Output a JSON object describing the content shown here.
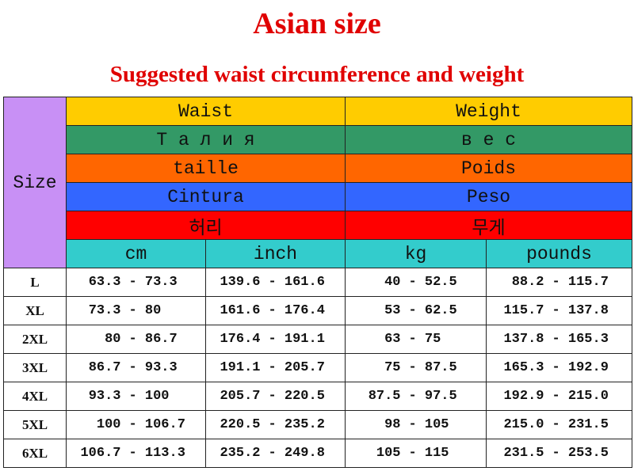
{
  "title": "Asian size",
  "subtitle": "Suggested waist circumference and weight",
  "size_label": "Size",
  "header_rows": [
    {
      "waist": "Waist",
      "weight": "Weight",
      "color": "#ffcc00"
    },
    {
      "waist": "Т а л и я",
      "weight": "в е с",
      "color": "#339966"
    },
    {
      "waist": "taille",
      "weight": "Poids",
      "color": "#ff6600"
    },
    {
      "waist": "Cintura",
      "weight": "Peso",
      "color": "#3366ff"
    },
    {
      "waist": "허리",
      "weight": "무게",
      "color": "#ff0000"
    }
  ],
  "units": {
    "cm": "cm",
    "inch": "inch",
    "kg": "kg",
    "pounds": "pounds",
    "color": "#33cccc"
  },
  "rows": [
    {
      "size": "L",
      "cm": [
        "63.3",
        "- 73.3"
      ],
      "inch": [
        "139.6",
        "- 161.6"
      ],
      "kg": [
        "40",
        "- 52.5"
      ],
      "pounds": [
        "88.2",
        "- 115.7"
      ]
    },
    {
      "size": "XL",
      "cm": [
        "73.3",
        "- 80"
      ],
      "inch": [
        "161.6",
        "- 176.4"
      ],
      "kg": [
        "53",
        "- 62.5"
      ],
      "pounds": [
        "115.7",
        "- 137.8"
      ]
    },
    {
      "size": "2XL",
      "cm": [
        "80",
        "- 86.7"
      ],
      "inch": [
        "176.4",
        "- 191.1"
      ],
      "kg": [
        "63",
        "- 75"
      ],
      "pounds": [
        "137.8",
        "- 165.3"
      ]
    },
    {
      "size": "3XL",
      "cm": [
        "86.7",
        "- 93.3"
      ],
      "inch": [
        "191.1",
        "- 205.7"
      ],
      "kg": [
        "75",
        "- 87.5"
      ],
      "pounds": [
        "165.3",
        "- 192.9"
      ]
    },
    {
      "size": "4XL",
      "cm": [
        "93.3",
        "- 100"
      ],
      "inch": [
        "205.7",
        "- 220.5"
      ],
      "kg": [
        "87.5",
        "- 97.5"
      ],
      "pounds": [
        "192.9",
        "- 215.0"
      ]
    },
    {
      "size": "5XL",
      "cm": [
        "100",
        "- 106.7"
      ],
      "inch": [
        "220.5",
        "- 235.2"
      ],
      "kg": [
        "98",
        "- 105"
      ],
      "pounds": [
        "215.0",
        "- 231.5"
      ]
    },
    {
      "size": "6XL",
      "cm": [
        "106.7",
        "- 113.3"
      ],
      "inch": [
        "235.2",
        "- 249.8"
      ],
      "kg": [
        "105",
        "- 115"
      ],
      "pounds": [
        "231.5",
        "- 253.5"
      ]
    }
  ]
}
